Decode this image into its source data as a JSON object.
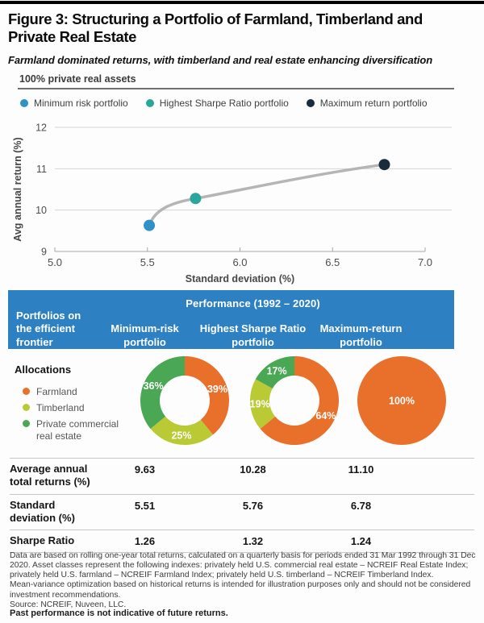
{
  "figure": {
    "title": "Figure 3: Structuring a Portfolio of Farmland, Timberland and Private Real Estate",
    "subtitle": "Farmland dominated returns, with timberland and real estate enhancing diversification"
  },
  "chart_data": {
    "type": "scatter",
    "title": "100% private real assets",
    "xlabel": "Standard deviation (%)",
    "ylabel": "Avg annual return (%)",
    "xlim": [
      5.0,
      7.0
    ],
    "ylim": [
      9,
      12
    ],
    "xticks": [
      5.0,
      5.5,
      6.0,
      6.5,
      7.0
    ],
    "yticks": [
      9,
      10,
      11,
      12
    ],
    "grid": "horizontal",
    "legend_position": "top-left",
    "curve": {
      "color": "#b5b5b5",
      "description": "efficient frontier curve through the three portfolio points"
    },
    "points": [
      {
        "name": "Minimum risk portfolio",
        "x": 5.51,
        "y": 9.63,
        "color": "#2e92c5"
      },
      {
        "name": "Highest Sharpe Ratio portfolio",
        "x": 5.76,
        "y": 10.28,
        "color": "#2aa79c"
      },
      {
        "name": "Maximum return portfolio",
        "x": 6.78,
        "y": 11.1,
        "color": "#1a2b3c"
      }
    ]
  },
  "table": {
    "header_title": "Performance (1992 – 2020)",
    "header_bg": "#2d80c2",
    "row_header": "Portfolios on the efficient frontier",
    "columns": [
      "Minimum-risk portfolio",
      "Highest Sharpe Ratio portfolio",
      "Maximum-return portfolio"
    ],
    "allocations_label": "Allocations",
    "asset_legend": [
      {
        "label": "Farmland",
        "color": "#e8702a"
      },
      {
        "label": "Timberland",
        "color": "#b9ca35"
      },
      {
        "label": "Private commercial real estate",
        "color": "#4aa753"
      }
    ],
    "donuts": [
      {
        "column": "Minimum-risk portfolio",
        "type": "donut",
        "values": [
          39,
          25,
          36
        ],
        "labels": [
          "39%",
          "25%",
          "36%"
        ]
      },
      {
        "column": "Highest Sharpe Ratio portfolio",
        "type": "donut",
        "values": [
          64,
          19,
          17
        ],
        "labels": [
          "64%",
          "19%",
          "17%"
        ]
      },
      {
        "column": "Maximum-return portfolio",
        "type": "pie",
        "values": [
          100
        ],
        "labels": [
          "100%"
        ]
      }
    ],
    "rows": [
      {
        "label": "Average annual total returns (%)",
        "values": [
          "9.63",
          "10.28",
          "11.10"
        ]
      },
      {
        "label": "Standard deviation (%)",
        "values": [
          "5.51",
          "5.76",
          "6.78"
        ]
      },
      {
        "label": "Sharpe Ratio",
        "values": [
          "1.26",
          "1.32",
          "1.24"
        ]
      }
    ]
  },
  "footnotes": [
    "Data are based on rolling one-year total returns, calculated on a quarterly basis for periods ended 31 Mar 1992 through 31 Dec 2020. Asset classes represent the following indexes: privately held U.S. commercial real estate – NCREIF Real Estate Index; privately held U.S. farmland – NCREIF Farmland Index; privately held U.S. timberland – NCREIF Timberland Index.",
    "Mean-variance optimization based on historical returns is intended for illustration purposes only and should not be considered investment recommendations.",
    "Source: NCREIF, Nuveen, LLC.",
    "Past performance is not indicative of future returns."
  ]
}
